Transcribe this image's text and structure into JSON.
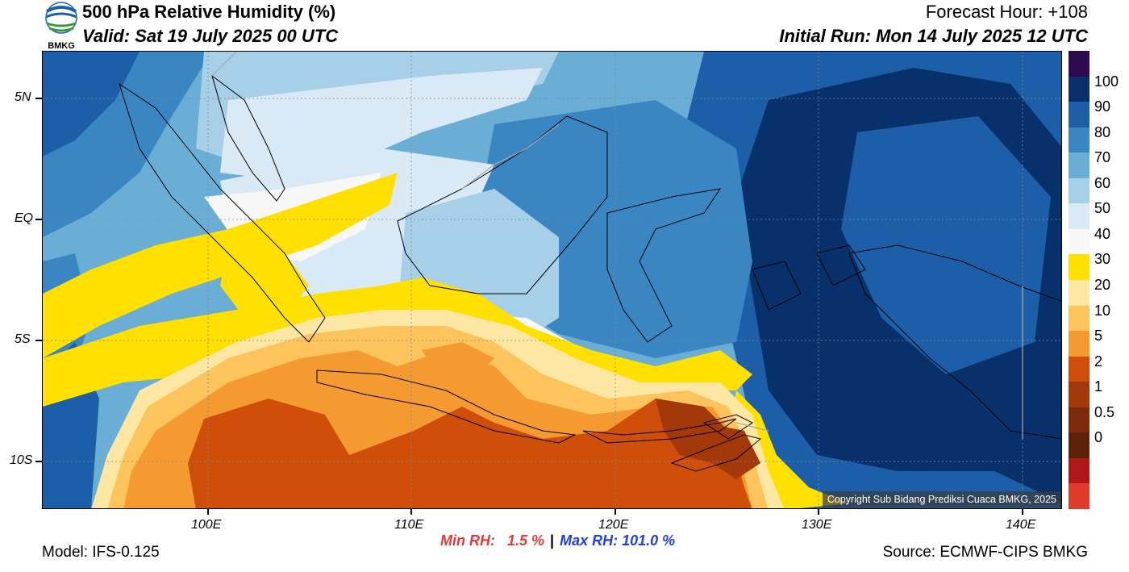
{
  "header": {
    "title": "500 hPa Relative Humidity (%)",
    "valid": "Valid: Sat 19 July 2025 00 UTC",
    "forecast_hour": "Forecast Hour: +108",
    "initial_run": "Initial Run: Mon 14 July 2025 12 UTC"
  },
  "logo": {
    "text": "BMKG"
  },
  "axes": {
    "lat_labels": [
      "5N",
      "EQ",
      "5S",
      "10S"
    ],
    "lon_labels": [
      "100E",
      "110E",
      "120E",
      "130E",
      "140E"
    ]
  },
  "colorbar": {
    "labels": [
      "100",
      "90",
      "80",
      "70",
      "60",
      "50",
      "40",
      "30",
      "20",
      "10",
      "5",
      "2",
      "1",
      "0.5",
      "0"
    ],
    "colors": [
      "#2d0a52",
      "#08306b",
      "#1c5fa8",
      "#3a86c2",
      "#6aaed6",
      "#a8cfe8",
      "#d9e9f5",
      "#f7f7f7",
      "#ffe000",
      "#fde7a2",
      "#fdc45d",
      "#f59a30",
      "#cf4e0a",
      "#a3380b",
      "#7c2a0c",
      "#5e2209",
      "#b01818",
      "#e03a2c"
    ]
  },
  "stats": {
    "min_label": "Min RH:",
    "min_value": "1.5 %",
    "separator": "|",
    "max_label": "Max RH:",
    "max_value": "101.0 %"
  },
  "footer": {
    "model": "Model: IFS-0.125",
    "source": "Source: ECMWF-CIPS BMKG"
  },
  "copyright": "Copyright Sub Bidang Prediksi Cuaca BMKG, 2025"
}
